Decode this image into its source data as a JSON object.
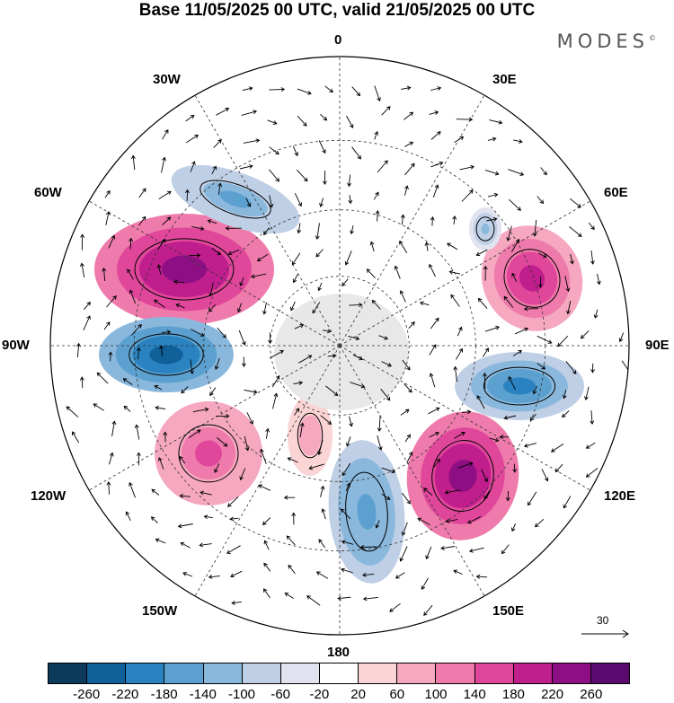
{
  "title": "Base 11/05/2025 00 UTC, valid 21/05/2025 00 UTC",
  "brand": "MODES",
  "brand_mark": "©",
  "longitude_labels": {
    "lon_0": "0",
    "lon_30e": "30E",
    "lon_60e": "60E",
    "lon_90e": "90E",
    "lon_120e": "120E",
    "lon_150e": "150E",
    "lon_180": "180",
    "lon_150w": "150W",
    "lon_120w": "120W",
    "lon_90w": "90W",
    "lon_60w": "60W",
    "lon_30w": "30W"
  },
  "reference_vector": {
    "label": "30",
    "icon": "arrow-right-icon"
  },
  "colorbar": {
    "boundaries": [
      "-260",
      "-220",
      "-180",
      "-140",
      "-100",
      "-60",
      "-20",
      "20",
      "60",
      "100",
      "140",
      "180",
      "220",
      "260"
    ],
    "colors": [
      "#0b3a5c",
      "#10609a",
      "#2a83c0",
      "#5ba0cf",
      "#8ab8dd",
      "#bfcfe6",
      "#e2e3f0",
      "#ffffff",
      "#fbd4d6",
      "#f5a8bf",
      "#ee7bab",
      "#e0479b",
      "#bf1e8c",
      "#8e0f84",
      "#5a0a6e"
    ]
  },
  "map": {
    "projection": "south-polar-stereographic",
    "field": "anomaly",
    "land_color": "#e8e8e8",
    "anomaly_features": [
      {
        "name": "positive-anomaly-60w",
        "value": 240,
        "color": "#8e0f84"
      },
      {
        "name": "negative-anomaly-90w",
        "value": -250,
        "color": "#0b3a5c"
      },
      {
        "name": "negative-anomaly-30w",
        "value": -160,
        "color": "#2a83c0"
      },
      {
        "name": "positive-anomaly-120w",
        "value": 150,
        "color": "#ee7bab"
      },
      {
        "name": "negative-anomaly-180",
        "value": -170,
        "color": "#2a83c0"
      },
      {
        "name": "positive-anomaly-150e",
        "value": 230,
        "color": "#bf1e8c"
      },
      {
        "name": "negative-anomaly-90e",
        "value": -220,
        "color": "#10609a"
      },
      {
        "name": "positive-anomaly-60e",
        "value": 190,
        "color": "#e0479b"
      },
      {
        "name": "negative-anomaly-45e",
        "value": -120,
        "color": "#5ba0cf"
      },
      {
        "name": "positive-anomaly-165w",
        "value": 90,
        "color": "#f5a8bf"
      }
    ]
  }
}
